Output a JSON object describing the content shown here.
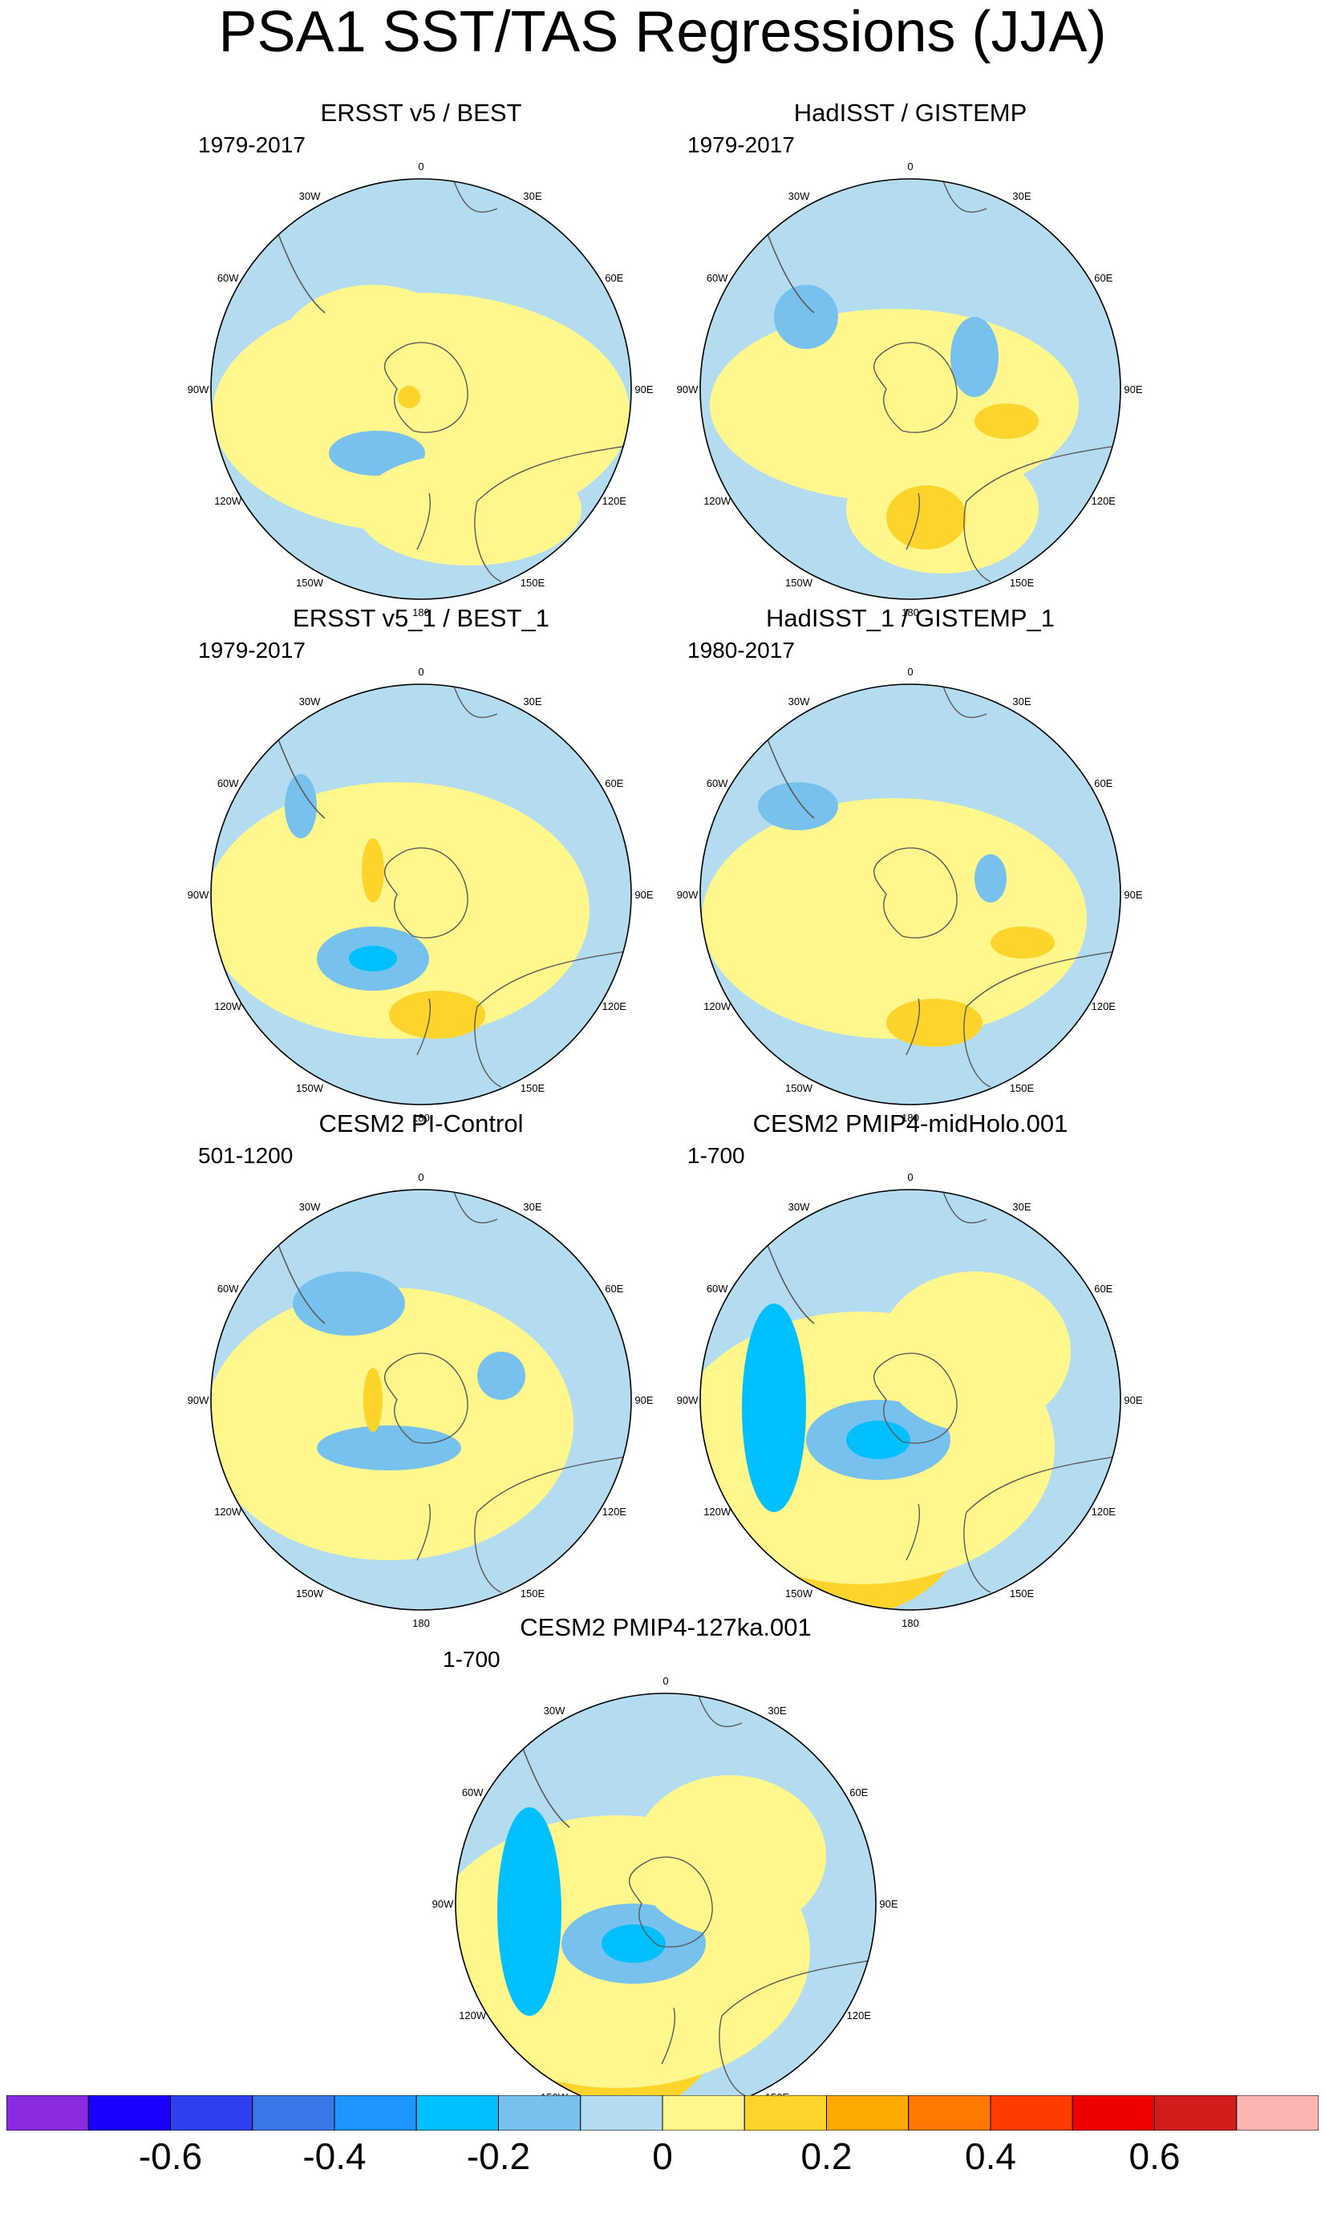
{
  "title": "PSA1 SST/TAS Regressions (JJA)",
  "colors": {
    "water_neg1": "#b4dcf0",
    "water_neg2": "#76c1ee",
    "water_neg3": "#00c0ff",
    "pos1": "#fff68c",
    "pos2": "#ffd42a",
    "pos3": "#ffaa00",
    "land_outline": "#5a5a5a"
  },
  "lon_labels": [
    "0",
    "30E",
    "60E",
    "90E",
    "120E",
    "150E",
    "180",
    "150W",
    "120W",
    "90W",
    "60W",
    "30W"
  ],
  "panels": [
    {
      "id": "p1",
      "title": "ERSST v5 / BEST",
      "period": "1979-2017"
    },
    {
      "id": "p2",
      "title": "HadISST / GISTEMP",
      "period": "1979-2017"
    },
    {
      "id": "p3",
      "title": "ERSST v5_1 / BEST_1",
      "period": "1979-2017"
    },
    {
      "id": "p4",
      "title": "HadISST_1 / GISTEMP_1",
      "period": "1980-2017"
    },
    {
      "id": "p5",
      "title": "CESM2 PI-Control",
      "period": "501-1200"
    },
    {
      "id": "p6",
      "title": "CESM2 PMIP4-midHolo.001",
      "period": "1-700"
    },
    {
      "id": "p7",
      "title": "CESM2 PMIP4-127ka.001",
      "period": "1-700"
    }
  ],
  "chart_data": {
    "type": "heatmap",
    "projection": "south polar stereographic",
    "colorbar": {
      "colors": [
        "#8a2be2",
        "#1a00ff",
        "#2e3ff0",
        "#3a78ea",
        "#1e96ff",
        "#00c0ff",
        "#76c1ee",
        "#b4dcf0",
        "#fff68c",
        "#ffd42a",
        "#ffaa00",
        "#ff7800",
        "#ff3c00",
        "#ee0000",
        "#d41c1c",
        "#ffb4b4"
      ],
      "levels": [
        -0.7,
        -0.6,
        -0.5,
        -0.4,
        -0.3,
        -0.2,
        -0.1,
        0,
        0.1,
        0.2,
        0.3,
        0.4,
        0.5,
        0.6,
        0.7
      ],
      "tick_labels": [
        "-0.6",
        "-0.4",
        "-0.2",
        "0",
        "0.2",
        "0.4",
        "0.6"
      ],
      "tick_values": [
        -0.6,
        -0.4,
        -0.2,
        0,
        0.2,
        0.4,
        0.6
      ]
    }
  }
}
